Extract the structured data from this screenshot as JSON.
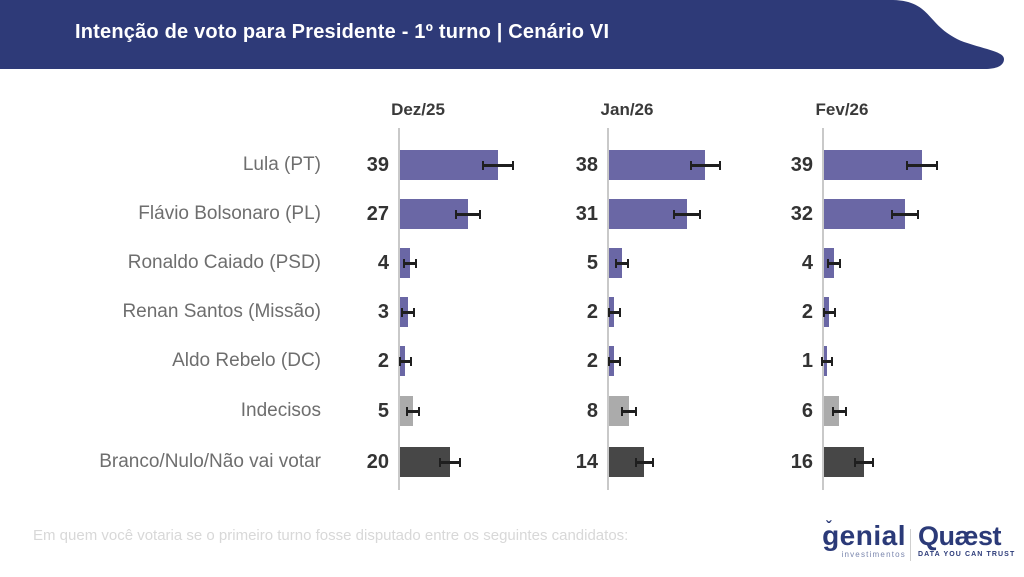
{
  "header": {
    "title": "Intenção de voto para Presidente - 1º turno | Cenário VI",
    "banner_color": "#2e3a78"
  },
  "chart_data": {
    "type": "bar",
    "orientation": "horizontal",
    "categories": [
      "Lula (PT)",
      "Flávio Bolsonaro (PL)",
      "Ronaldo Caiado (PSD)",
      "Renan Santos (Missão)",
      "Aldo Rebelo (DC)",
      "Indecisos",
      "Branco/Nulo/Não vai votar"
    ],
    "category_types": [
      "candidate",
      "candidate",
      "candidate",
      "candidate",
      "candidate",
      "undecided",
      "blank"
    ],
    "series": [
      {
        "name": "Dez/25",
        "values": [
          39,
          27,
          4,
          3,
          2,
          5,
          20
        ]
      },
      {
        "name": "Jan/26",
        "values": [
          38,
          31,
          5,
          2,
          2,
          8,
          14
        ]
      },
      {
        "name": "Fev/26",
        "values": [
          39,
          32,
          4,
          2,
          1,
          6,
          16
        ]
      }
    ],
    "unit": "%",
    "value_range": [
      0,
      40
    ],
    "error_bars": true,
    "grid": false,
    "legend_position": "none",
    "colors": {
      "candidate": "#6a67a5",
      "undecided": "#ababab",
      "blank": "#474747",
      "axis": "#c9c9c9",
      "error_bar": "#1f1f1f"
    }
  },
  "footer": {
    "question": "Em quem você votaria se o primeiro turno fosse disputado entre os seguintes candidatos:"
  },
  "branding": {
    "genial": {
      "name": "genial",
      "tagline": "investimentos"
    },
    "quaest": {
      "name": "Quæst",
      "tagline": "DATA YOU CAN TRUST"
    },
    "color": "#2b3a78"
  }
}
